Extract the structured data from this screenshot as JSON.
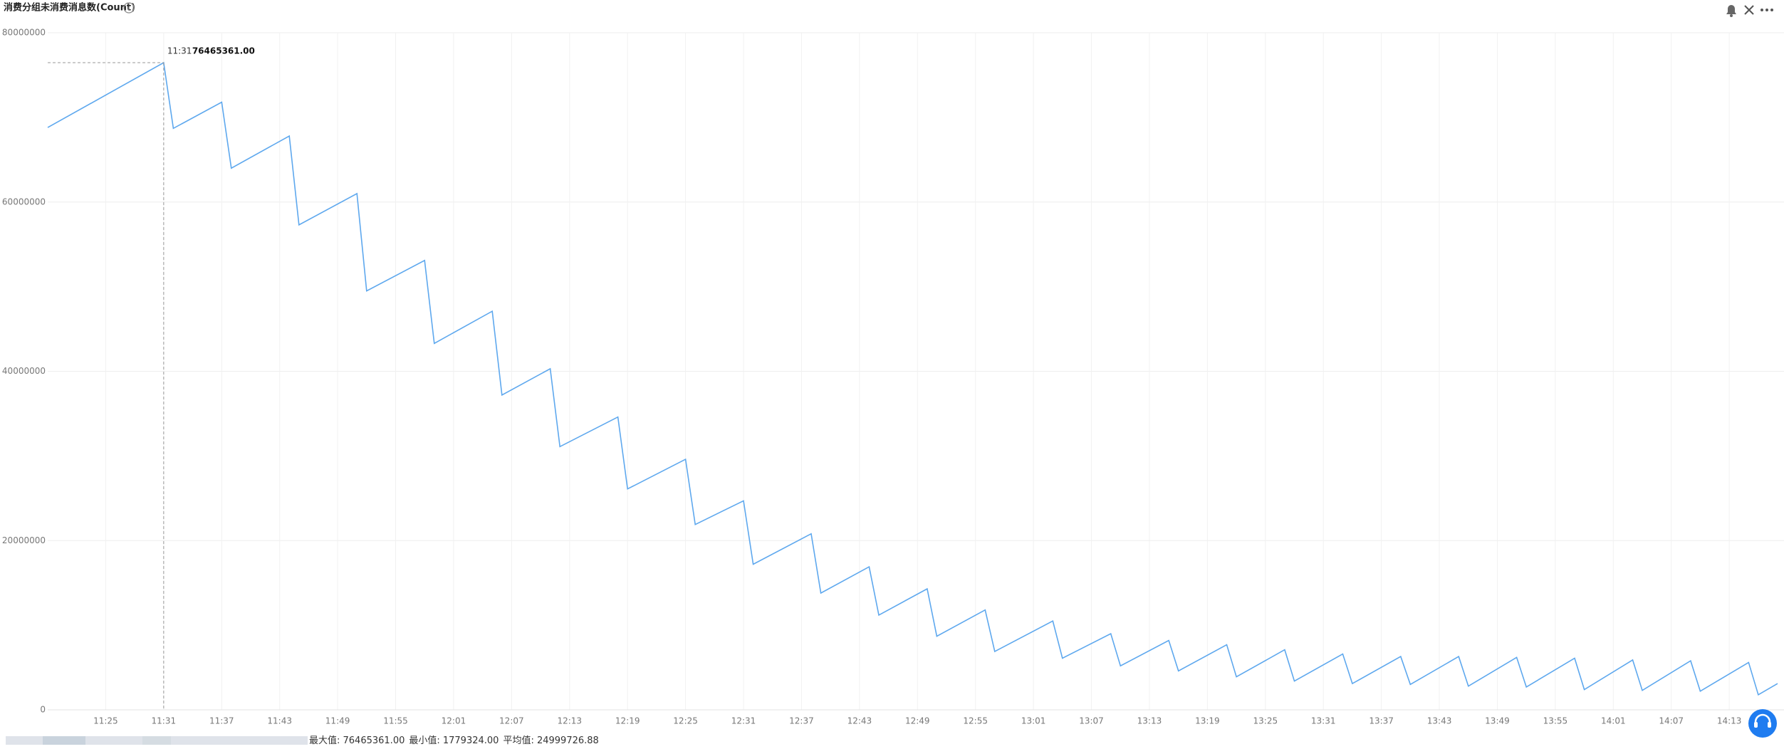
{
  "chart_data": {
    "type": "line",
    "title": "消费分组未消费消息数(Count)",
    "x": [
      "11:19",
      "11:31",
      "11:32",
      "11:37",
      "11:38",
      "11:44",
      "11:45",
      "11:51",
      "11:52",
      "11:58",
      "11:59",
      "12:05",
      "12:06",
      "12:11",
      "12:12",
      "12:18",
      "12:19",
      "12:25",
      "12:26",
      "12:31",
      "12:32",
      "12:38",
      "12:39",
      "12:44",
      "12:45",
      "12:50",
      "12:51",
      "12:56",
      "12:57",
      "13:03",
      "13:04",
      "13:09",
      "13:10",
      "13:15",
      "13:16",
      "13:21",
      "13:22",
      "13:27",
      "13:28",
      "13:33",
      "13:34",
      "13:39",
      "13:40",
      "13:45",
      "13:46",
      "13:51",
      "13:52",
      "13:57",
      "13:58",
      "14:03",
      "14:04",
      "14:09",
      "14:10",
      "14:15",
      "14:16",
      "14:18"
    ],
    "values": [
      68800000,
      76465361,
      68700000,
      71800000,
      64000000,
      67800000,
      57300000,
      61000000,
      49500000,
      53100000,
      43300000,
      47100000,
      37200000,
      40300000,
      31100000,
      34600000,
      26100000,
      29600000,
      21900000,
      24700000,
      17200000,
      20800000,
      13800000,
      16900000,
      11200000,
      14300000,
      8700000,
      11800000,
      6900000,
      10500000,
      6100000,
      9000000,
      5200000,
      8200000,
      4600000,
      7700000,
      3900000,
      7100000,
      3400000,
      6600000,
      3100000,
      6300000,
      3000000,
      6300000,
      2800000,
      6200000,
      2700000,
      6100000,
      2400000,
      5900000,
      2300000,
      5800000,
      2200000,
      5600000,
      1779324,
      3100000
    ],
    "color": "#5ea8ee",
    "xlim": [
      "11:19",
      "14:18"
    ],
    "xticks": [
      "11:25",
      "11:31",
      "11:37",
      "11:43",
      "11:49",
      "11:55",
      "12:01",
      "12:07",
      "12:13",
      "12:19",
      "12:25",
      "12:31",
      "12:37",
      "12:43",
      "12:49",
      "12:55",
      "13:01",
      "13:07",
      "13:13",
      "13:19",
      "13:25",
      "13:31",
      "13:37",
      "13:43",
      "13:49",
      "13:55",
      "14:01",
      "14:07",
      "14:13"
    ],
    "ylim": [
      0,
      80000000
    ],
    "yticks": [
      0,
      20000000,
      40000000,
      60000000,
      80000000
    ],
    "grid": true,
    "tooltip": {
      "x": "11:31",
      "label": "76465361.00"
    },
    "stats": [
      "最大值: 76465361.00",
      "最小值: 1779324.00",
      "平均值: 24999726.88"
    ]
  }
}
